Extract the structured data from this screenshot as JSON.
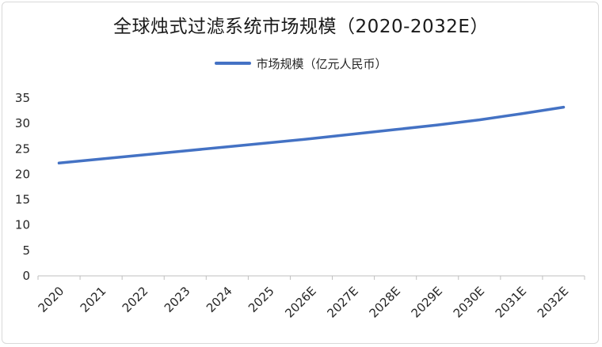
{
  "chart_data": {
    "type": "line",
    "title": "全球烛式过滤系统市场规模（2020-2032E）",
    "categories": [
      "2020",
      "2021",
      "2022",
      "2023",
      "2024",
      "2025",
      "2026E",
      "2027E",
      "2028E",
      "2029E",
      "2030E",
      "2031E",
      "2032E"
    ],
    "series": [
      {
        "name": "市场规模（亿元人民币）",
        "color": "#4472c4",
        "values": [
          22.2,
          23.0,
          23.8,
          24.6,
          25.4,
          26.2,
          27.0,
          27.9,
          28.8,
          29.7,
          30.7,
          31.9,
          33.2
        ]
      }
    ],
    "ylim": [
      0,
      35
    ],
    "yticks": [
      0,
      5,
      10,
      15,
      20,
      25,
      30,
      35
    ],
    "grid": false,
    "legend_position": "top"
  }
}
